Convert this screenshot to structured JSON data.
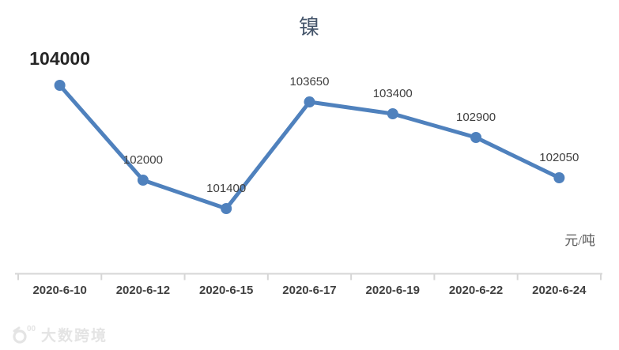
{
  "chart": {
    "title": "镍",
    "unit_label": "元/吨",
    "watermark_text": "大数跨境",
    "watermark_superscript": "00"
  },
  "chart_data": {
    "type": "line",
    "title": "镍",
    "categories": [
      "2020-6-10",
      "2020-6-12",
      "2020-6-15",
      "2020-6-17",
      "2020-6-19",
      "2020-6-22",
      "2020-6-24"
    ],
    "values": [
      104000,
      102000,
      101400,
      103650,
      103400,
      102900,
      102050
    ],
    "series_name": "镍",
    "xlabel": "",
    "ylabel": "元/吨",
    "y_axis_visible": false,
    "grid": false,
    "legend": false,
    "data_labels": true,
    "emphasized_label_index": 0,
    "line_color": "#4F81BD",
    "marker_color": "#4F81BD",
    "axis_color": "#d6d6d6",
    "label_color": "#404040",
    "title_color": "#44546A",
    "xtick_color": "#3f3f3f"
  }
}
